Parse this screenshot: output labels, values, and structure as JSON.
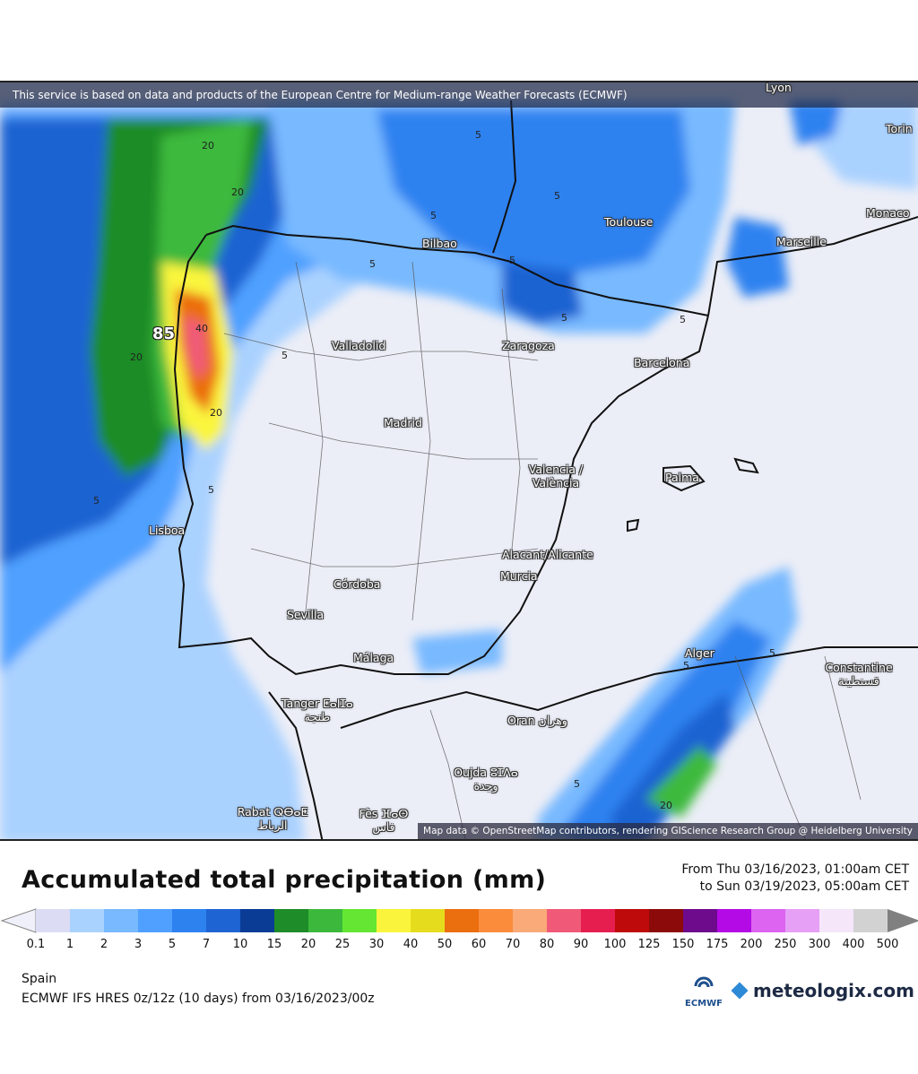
{
  "map": {
    "disclaimer": "This service is based on data and products of the European Centre for Medium-range Weather Forecasts (ECMWF)",
    "attribution": "Map data © OpenStreetMap contributors, rendering GIScience Research Group @ Heidelberg University",
    "max_value": "85",
    "cities": [
      {
        "name": "Lyon"
      },
      {
        "name": "Torin"
      },
      {
        "name": "Monaco"
      },
      {
        "name": "Toulouse"
      },
      {
        "name": "Marseille"
      },
      {
        "name": "Bilbao"
      },
      {
        "name": "Valladolid"
      },
      {
        "name": "Zaragoza"
      },
      {
        "name": "Barcelona"
      },
      {
        "name": "Madrid"
      },
      {
        "name": "Valencia / València"
      },
      {
        "name": "Palma"
      },
      {
        "name": "Lisboa"
      },
      {
        "name": "Alacant/Alicante"
      },
      {
        "name": "Murcia"
      },
      {
        "name": "Córdoba"
      },
      {
        "name": "Sevilla"
      },
      {
        "name": "Málaga"
      },
      {
        "name": "Alger"
      },
      {
        "name": "Constantine قسنطينة"
      },
      {
        "name": "Tanger ⵟⴰⵏⵊⴰ طنجة"
      },
      {
        "name": "Oran وهران"
      },
      {
        "name": "Oujda ⵓⵊⴷⴰ وجدة"
      },
      {
        "name": "Rabat ⵕⴱⴰⵟ الرباط"
      },
      {
        "name": "Fès ⴼⴰⵙ فاس"
      }
    ],
    "contour_labels": [
      "5",
      "20",
      "40"
    ]
  },
  "title": "Accumulated total precipitation (mm)",
  "period": {
    "from": "From Thu 03/16/2023, 01:00am CET",
    "to": "to Sun 03/19/2023, 05:00am CET"
  },
  "legend": {
    "ticks": [
      "0.1",
      "1",
      "2",
      "3",
      "5",
      "7",
      "10",
      "15",
      "20",
      "25",
      "30",
      "40",
      "50",
      "60",
      "70",
      "80",
      "90",
      "100",
      "125",
      "150",
      "175",
      "200",
      "250",
      "300",
      "400",
      "500"
    ],
    "colors": [
      "#dcdcf5",
      "#aad2ff",
      "#78b9ff",
      "#50a0ff",
      "#2d82f0",
      "#1e64d2",
      "#0a3c96",
      "#1e8c28",
      "#3cb93c",
      "#64e632",
      "#faf53c",
      "#e6dc1e",
      "#eb6e0f",
      "#fa8c3c",
      "#faaa78",
      "#f05a78",
      "#e61e50",
      "#be0a0a",
      "#8c0a0a",
      "#6e0a8c",
      "#b40ae6",
      "#dc64f0",
      "#e6a0f5",
      "#f5e6fa",
      "#d2d2d2"
    ],
    "under_color": "#f0f0fa",
    "over_color": "#808080"
  },
  "footer": {
    "region": "Spain",
    "model": "ECMWF IFS HRES 0z/12z (10 days) from 03/16/2023/00z",
    "ecmwf_label": "ECMWF",
    "brand": "meteologix.com"
  }
}
